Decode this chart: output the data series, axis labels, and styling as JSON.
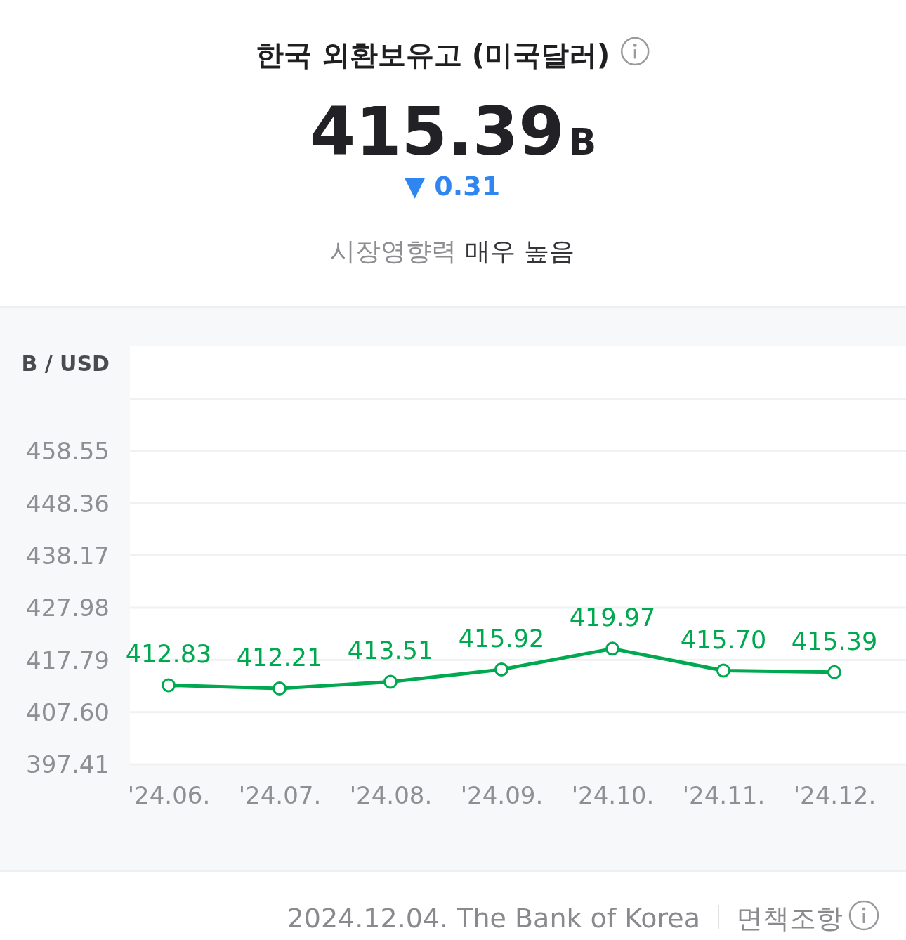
{
  "chart_data": {
    "type": "line",
    "title": "한국 외환보유고 (미국달러)",
    "ylabel": "B / USD",
    "categories": [
      "'24.06.",
      "'24.07.",
      "'24.08.",
      "'24.09.",
      "'24.10.",
      "'24.11.",
      "'24.12."
    ],
    "series": [
      {
        "color": "#00a84f",
        "values": [
          412.83,
          412.21,
          413.51,
          415.92,
          419.97,
          415.7,
          415.39
        ],
        "value_labels": [
          "412.83",
          "412.21",
          "413.51",
          "415.92",
          "419.97",
          "415.70",
          "415.39"
        ]
      }
    ],
    "ylim": [
      397.41,
      478.93
    ],
    "yticks": [
      397.41,
      {
        "value": 407.6,
        "label": "407.60"
      },
      417.79,
      427.98,
      438.17,
      448.36,
      458.55,
      {
        "value": 468.74,
        "label": null
      }
    ],
    "grid": "y",
    "marker": "circle",
    "line_style": "solid",
    "annotations": [
      "415.39",
      "B",
      "▼ 0.31",
      "시장영향력",
      "매우 높음",
      "2024.12.04. The Bank of Korea",
      "면책조항"
    ]
  }
}
